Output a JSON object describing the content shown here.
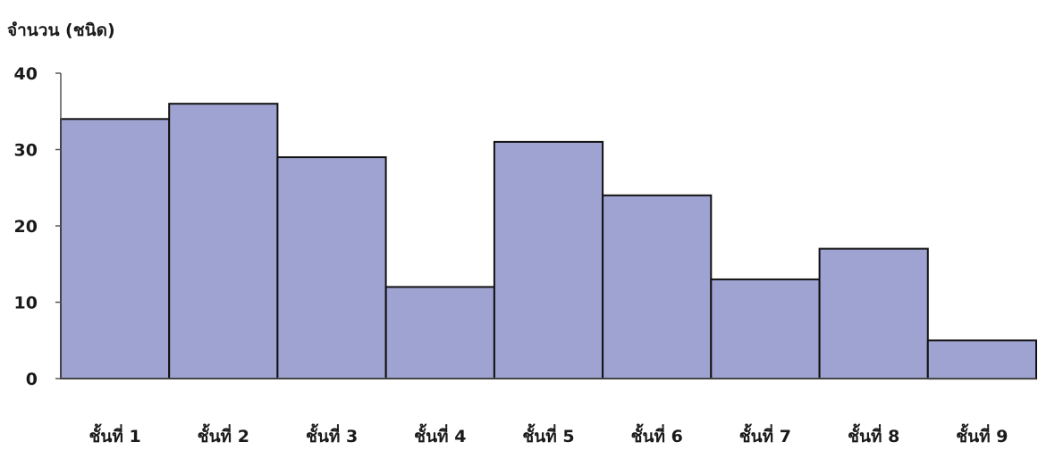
{
  "chart_data": {
    "type": "bar",
    "ylabel": "จำนวน (ชนิด)",
    "xlabel": "",
    "title": "",
    "categories": [
      "ชั้นที่ 1",
      "ชั้นที่ 2",
      "ชั้นที่ 3",
      "ชั้นที่ 4",
      "ชั้นที่ 5",
      "ชั้นที่ 6",
      "ชั้นที่ 7",
      "ชั้นที่ 8",
      "ชั้นที่ 9"
    ],
    "values": [
      34,
      36,
      29,
      12,
      31,
      24,
      13,
      17,
      5
    ],
    "ylim": [
      0,
      40
    ],
    "yticks": [
      0,
      10,
      20,
      30,
      40
    ],
    "grid": false,
    "legend": "none",
    "colors": {
      "bar_fill": "#9ea3d2",
      "bar_stroke": "#111111"
    }
  }
}
